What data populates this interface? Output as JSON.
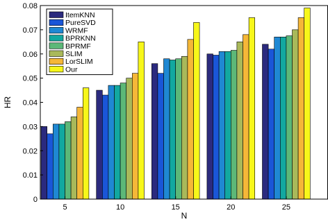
{
  "chart_data": {
    "type": "bar",
    "title": "",
    "xlabel": "N",
    "ylabel": "HR",
    "categories": [
      "5",
      "10",
      "15",
      "20",
      "25"
    ],
    "ylim": [
      0,
      0.08
    ],
    "yticks": [
      "0",
      "0.01",
      "0.02",
      "0.03",
      "0.04",
      "0.05",
      "0.06",
      "0.07",
      "0.08"
    ],
    "legend_position": "top-left",
    "grid": false,
    "series": [
      {
        "name": "ItemKNN",
        "color": "#2b2a7e",
        "values": [
          0.03,
          0.045,
          0.056,
          0.06,
          0.064
        ]
      },
      {
        "name": "PureSVD",
        "color": "#1a56d8",
        "values": [
          0.027,
          0.043,
          0.052,
          0.0595,
          0.062
        ]
      },
      {
        "name": "WRMF",
        "color": "#1f88d3",
        "values": [
          0.031,
          0.047,
          0.058,
          0.061,
          0.067
        ]
      },
      {
        "name": "BPRKNN",
        "color": "#12a8a0",
        "values": [
          0.031,
          0.047,
          0.0575,
          0.061,
          0.067
        ]
      },
      {
        "name": "BPRMF",
        "color": "#5cb878",
        "values": [
          0.032,
          0.048,
          0.058,
          0.0615,
          0.0675
        ]
      },
      {
        "name": "SLIM",
        "color": "#a9b95a",
        "values": [
          0.034,
          0.05,
          0.059,
          0.065,
          0.07
        ]
      },
      {
        "name": "LorSLIM",
        "color": "#f5b738",
        "values": [
          0.038,
          0.052,
          0.066,
          0.068,
          0.075
        ]
      },
      {
        "name": "Our",
        "color": "#f7f71a",
        "values": [
          0.046,
          0.065,
          0.073,
          0.075,
          0.079
        ]
      }
    ]
  }
}
